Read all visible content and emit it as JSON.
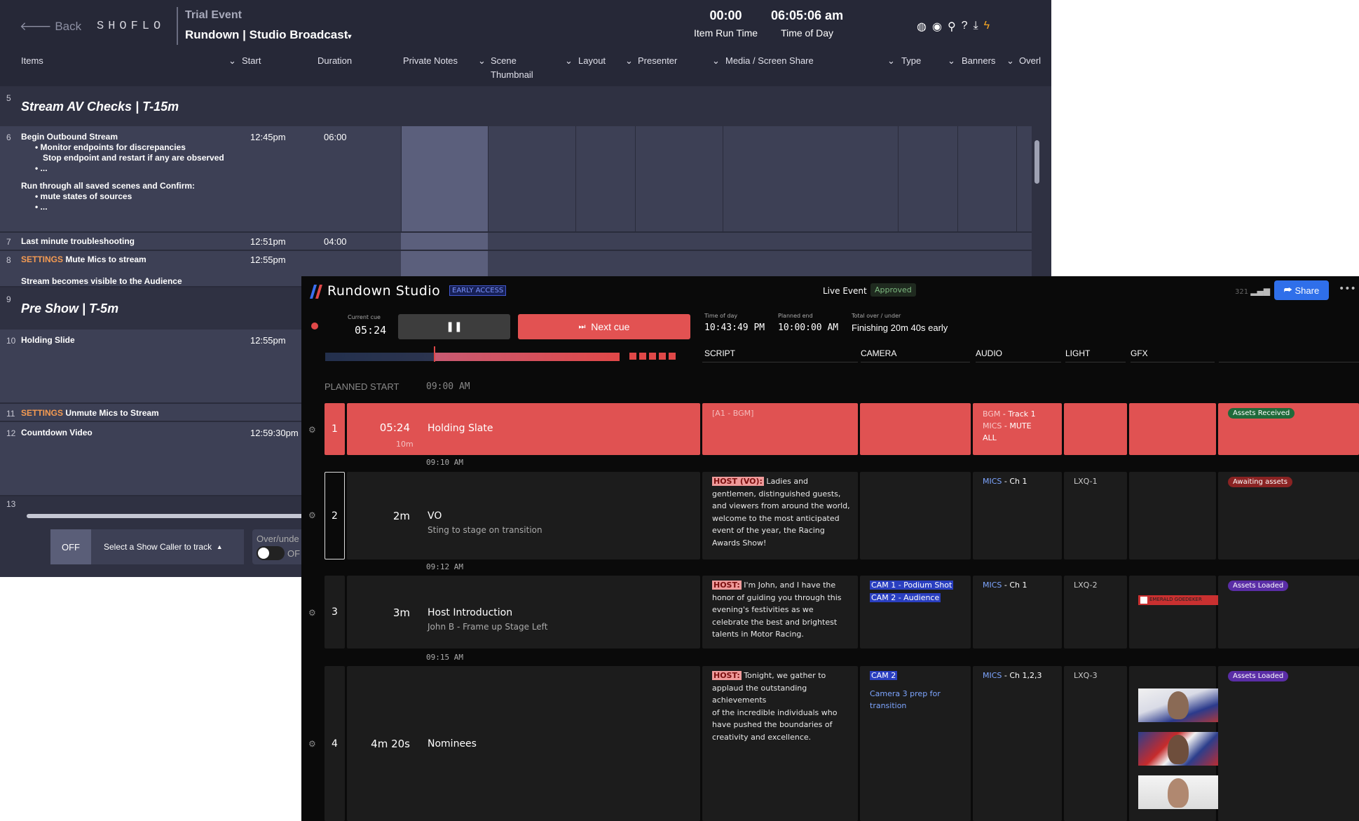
{
  "shoflo": {
    "back_label": "Back",
    "logo": "SHOFLO",
    "event_name": "Trial Event",
    "rundown_title": "Rundown | Studio Broadcast",
    "item_run_time": "00:00",
    "item_run_time_label": "Item Run Time",
    "time_of_day": "06:05:06 am",
    "time_of_day_label": "Time of Day",
    "columns": {
      "items": "Items",
      "start": "Start",
      "duration": "Duration",
      "private_notes": "Private Notes",
      "scene_thumbnail": "Scene\nThumbnail",
      "layout": "Layout",
      "presenter": "Presenter",
      "media": "Media / Screen Share",
      "type": "Type",
      "banners": "Banners",
      "overlays": "Overl"
    },
    "rows": [
      {
        "num": "5",
        "segment": "Stream AV Checks  |  T-15m"
      },
      {
        "num": "6",
        "title": "Begin Outbound Stream",
        "bullets": [
          "Monitor endpoints for discrepancies",
          "Stop endpoint and restart if any are observed",
          "..."
        ],
        "extra": "Run through all saved scenes and Confirm:",
        "bullets2": [
          "mute states of sources",
          "..."
        ],
        "start": "12:45pm",
        "duration": "06:00"
      },
      {
        "num": "7",
        "title": "Last minute troubleshooting",
        "start": "12:51pm",
        "duration": "04:00"
      },
      {
        "num": "8",
        "tag": "SETTINGS",
        "title": "Mute Mics to stream",
        "start": "12:55pm",
        "note": "Stream becomes visible to the Audience"
      },
      {
        "num": "9",
        "segment": "Pre Show  |  T-5m"
      },
      {
        "num": "10",
        "title": "Holding Slide",
        "start": "12:55pm"
      },
      {
        "num": "11",
        "tag": "SETTINGS",
        "title": "Unmute Mics to Stream"
      },
      {
        "num": "12",
        "title": "Countdown Video",
        "start": "12:59:30pm"
      },
      {
        "num": "13"
      }
    ],
    "footer": {
      "off": "OFF",
      "caller": "Select a Show Caller to track",
      "over_under": "Over/unde",
      "toggle_state": "OF"
    }
  },
  "rundown": {
    "title": "Rundown Studio",
    "early_access": "EARLY ACCESS",
    "event": "Live Event",
    "status": "Approved",
    "net": "321",
    "share": "Share",
    "current_cue_label": "Current cue",
    "current_cue": "05:24",
    "next_cue": "Next cue",
    "time_of_day_label": "Time of day",
    "time_of_day": "10:43:49 PM",
    "planned_end_label": "Planned end",
    "planned_end": "10:00:00 AM",
    "total_label": "Total over / under",
    "total": "Finishing 20m 40s early",
    "progress_fraction": 0.37,
    "columns": {
      "script": "SCRIPT",
      "camera": "CAMERA",
      "audio": "AUDIO",
      "light": "LIGHT",
      "gfx": "GFX"
    },
    "planned_start_label": "PLANNED START",
    "planned_start": "09:00 AM",
    "cues": [
      {
        "num": "1",
        "duration": "05:24",
        "sub": "10m",
        "name": "Holding Slate",
        "script": "[A1 - BGM]",
        "audio": [
          [
            "BGM",
            " - Track 1"
          ],
          [
            "MICS",
            " - MUTE"
          ],
          [
            "",
            "ALL"
          ]
        ],
        "badge": "Assets Received"
      },
      {
        "time": "09:10 AM",
        "num": "2",
        "duration": "2m",
        "name": "VO",
        "sub": "Sting to stage on transition",
        "host": "HOST (VO):",
        "script": " Ladies and gentlemen, distinguished guests, and viewers from around the world, welcome to the most anticipated event of the year, the Racing Awards Show!",
        "audio": [
          [
            "MICS",
            " - Ch 1"
          ]
        ],
        "light": "LXQ-1",
        "badge": "Awaiting assets"
      },
      {
        "time": "09:12 AM",
        "num": "3",
        "duration": "3m",
        "name": "Host Introduction",
        "sub": "John B - Frame up Stage Left",
        "host": "HOST:",
        "script": " I'm John, and I have the honor of guiding you through this evening's festivities as we celebrate the best and brightest talents in Motor Racing.",
        "cams": [
          "CAM 1 - Podium Shot",
          "CAM 2 - Audience"
        ],
        "audio": [
          [
            "MICS",
            " - Ch 1"
          ]
        ],
        "light": "LXQ-2",
        "gfx_text": "EMERALD GOEDEKER",
        "badge": "Assets Loaded"
      },
      {
        "time": "09:15 AM",
        "num": "4",
        "duration": "4m 20s",
        "name": "Nominees",
        "host": "HOST:",
        "script": " Tonight, we gather to applaud the outstanding achievements\nof the incredible individuals who have pushed the boundaries of creativity and excellence.",
        "cams": [
          "CAM 2"
        ],
        "cam_note": "Camera 3 prep for transition",
        "audio": [
          [
            "MICS",
            " - Ch 1,2,3"
          ]
        ],
        "light": "LXQ-3",
        "badge": "Assets Loaded"
      }
    ]
  }
}
